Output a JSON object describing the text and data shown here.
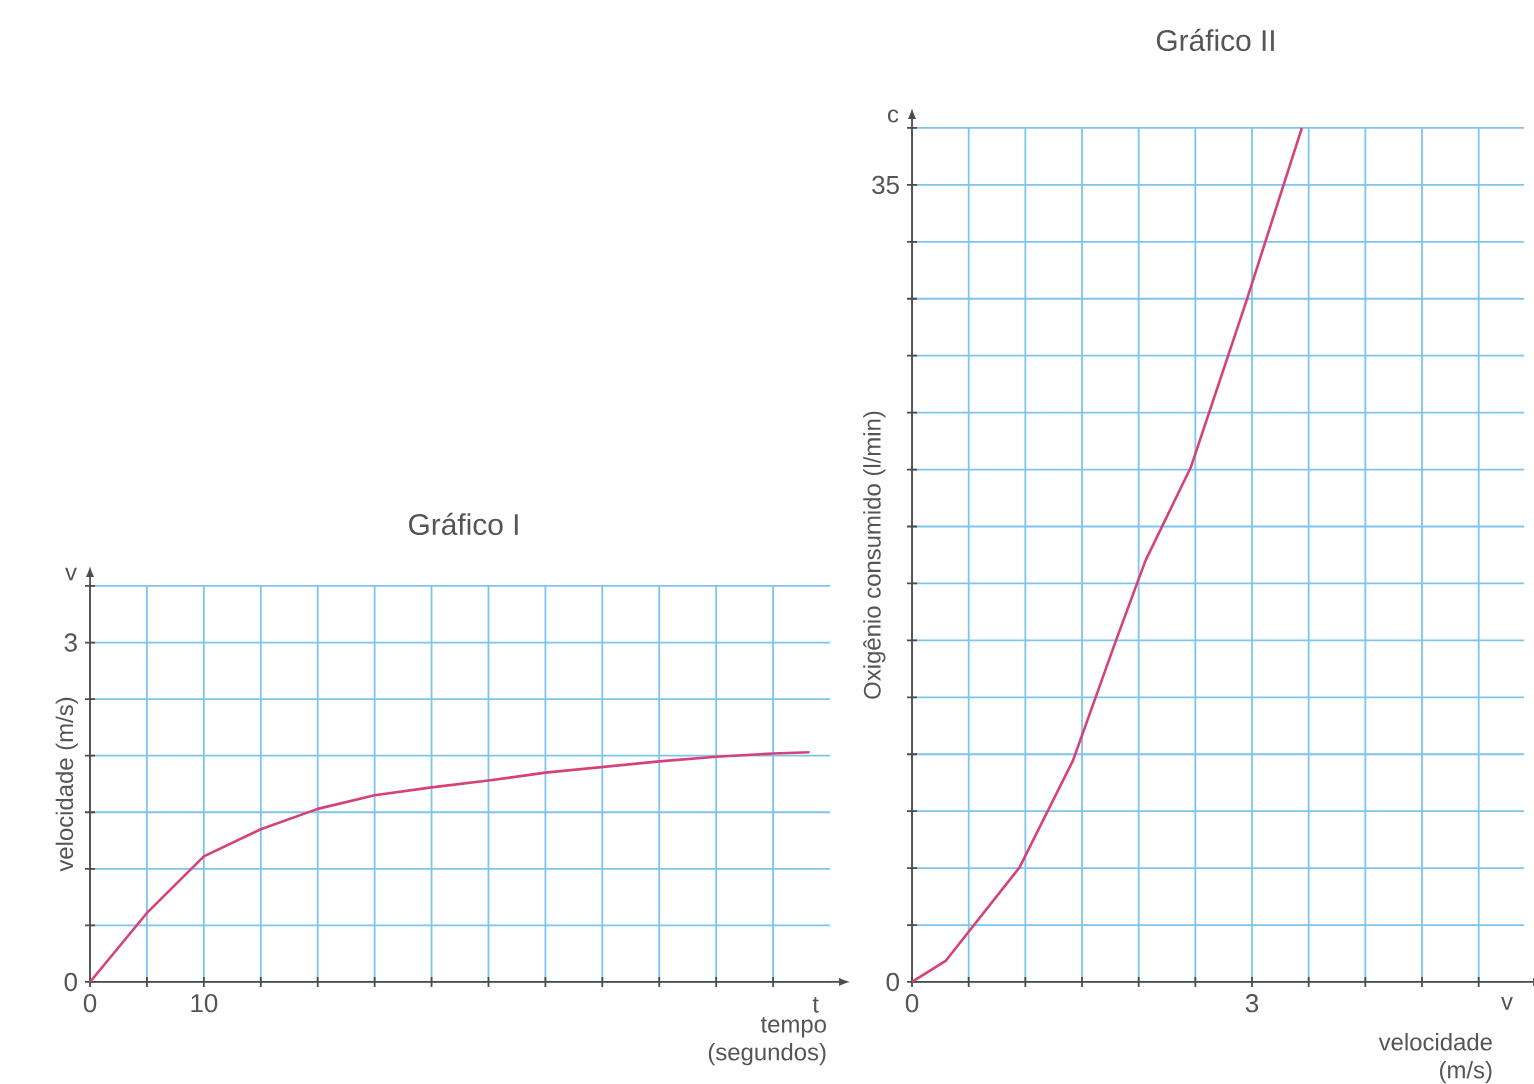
{
  "chart_data": [
    {
      "type": "line",
      "title": "Gráfico I",
      "xlabel": "tempo (segundos)",
      "ylabel": "velocidade (m/s)",
      "annotations": [
        "v",
        "t"
      ],
      "xlim": [
        0,
        65
      ],
      "ylim": [
        0,
        3.5
      ],
      "xticks": [
        0,
        {
          "value": 5,
          "label": null
        },
        10,
        {
          "value": 15,
          "label": null
        },
        {
          "value": 20,
          "label": null
        },
        {
          "value": 25,
          "label": null
        },
        {
          "value": 30,
          "label": null
        },
        {
          "value": 35,
          "label": null
        },
        {
          "value": 40,
          "label": null
        },
        {
          "value": 45,
          "label": null
        },
        {
          "value": 50,
          "label": null
        },
        {
          "value": 55,
          "label": null
        },
        {
          "value": 60,
          "label": null
        }
      ],
      "yticks": [
        0,
        {
          "value": 0.5,
          "label": null
        },
        {
          "value": 1,
          "label": null
        },
        {
          "value": 1.5,
          "label": null
        },
        {
          "value": 2,
          "label": null
        },
        {
          "value": 2.5,
          "label": null
        },
        3,
        {
          "value": 3.5,
          "label": null
        }
      ],
      "grid": true,
      "marker": "none",
      "series": [
        {
          "color": "#d6417a",
          "x": [
            0,
            5,
            10,
            15,
            20,
            25,
            30,
            35,
            40,
            45,
            50,
            55,
            60,
            63.2
          ],
          "values": [
            0,
            0.61,
            1.11,
            1.35,
            1.53,
            1.65,
            1.72,
            1.78,
            1.85,
            1.9,
            1.95,
            1.99,
            2.02,
            2.03
          ]
        }
      ]
    },
    {
      "type": "line",
      "title": "Gráfico II",
      "xlabel": "velocidade (m/s)",
      "ylabel": "Oxigênio consumido (l/min)",
      "annotations": [
        "c",
        "v"
      ],
      "xlim": [
        0,
        5.4
      ],
      "ylim": [
        0,
        37.5
      ],
      "xticks": [
        0,
        {
          "value": 0.5,
          "label": null
        },
        {
          "value": 1,
          "label": null
        },
        {
          "value": 1.5,
          "label": null
        },
        {
          "value": 2,
          "label": null
        },
        {
          "value": 2.5,
          "label": null
        },
        3,
        {
          "value": 3.5,
          "label": null
        },
        {
          "value": 4,
          "label": null
        },
        {
          "value": 4.5,
          "label": null
        },
        {
          "value": 5,
          "label": null
        }
      ],
      "yticks": [
        0,
        {
          "value": 2.5,
          "label": null
        },
        {
          "value": 5,
          "label": null
        },
        {
          "value": 7.5,
          "label": null
        },
        {
          "value": 10,
          "label": null
        },
        {
          "value": 12.5,
          "label": null
        },
        {
          "value": 15,
          "label": null
        },
        {
          "value": 17.5,
          "label": null
        },
        {
          "value": 20,
          "label": null
        },
        {
          "value": 22.5,
          "label": null
        },
        {
          "value": 25,
          "label": null
        },
        {
          "value": 27.5,
          "label": null
        },
        {
          "value": 30,
          "label": null
        },
        {
          "value": 32.5,
          "label": null
        },
        35,
        {
          "value": 37.5,
          "label": null
        }
      ],
      "grid": true,
      "marker": "none",
      "series": [
        {
          "color": "#d6417a",
          "x": [
            0,
            0.3,
            0.54,
            0.95,
            1.42,
            1.8,
            2.06,
            2.46,
            2.95,
            3.44
          ],
          "values": [
            0,
            0.94,
            2.46,
            5.04,
            9.72,
            15,
            18.5,
            22.6,
            29.9,
            37.5
          ]
        }
      ]
    }
  ]
}
